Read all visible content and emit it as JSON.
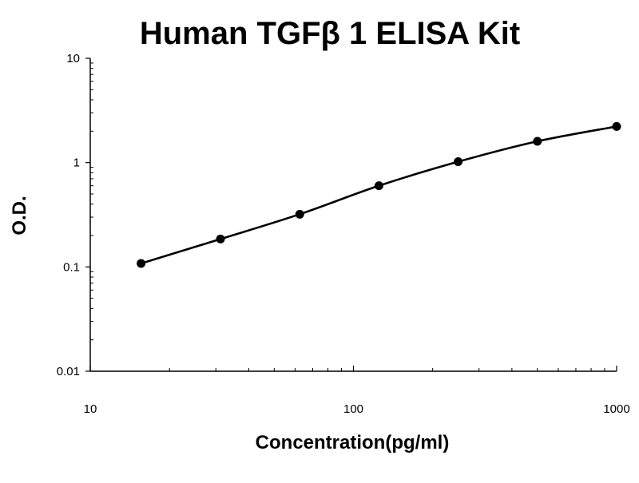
{
  "chart_data": {
    "type": "line",
    "title": "Human TGFβ 1 ELISA Kit",
    "xlabel": "Concentration(pg/ml)",
    "ylabel": "O.D.",
    "x_scale": "log",
    "y_scale": "log",
    "xlim": [
      10,
      1000
    ],
    "ylim": [
      0.01,
      10
    ],
    "x_ticks": [
      "10",
      "100",
      "1000"
    ],
    "y_ticks": [
      "0.01",
      "0.1",
      "1",
      "10"
    ],
    "grid": false,
    "legend": "none",
    "series": [
      {
        "x": [
          15.6,
          31.25,
          62.5,
          125,
          250,
          500,
          1000
        ],
        "y": [
          0.108,
          0.185,
          0.32,
          0.6,
          1.02,
          1.6,
          2.22
        ]
      }
    ],
    "line_color": "#000000",
    "marker_color": "#000000"
  }
}
